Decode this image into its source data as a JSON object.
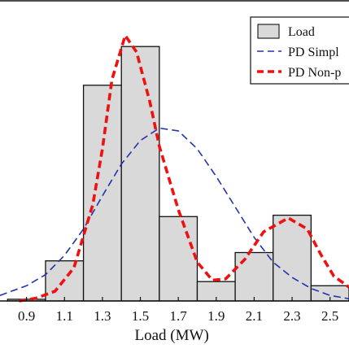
{
  "chart_data": {
    "type": "bar",
    "xlabel": "Load (MW)",
    "ylabel": "",
    "title": "",
    "x_ticks": [
      "0.9",
      "1.1",
      "1.3",
      "1.5",
      "1.7",
      "1.9",
      "2.1",
      "2.3",
      "2.5"
    ],
    "xlim": [
      0.76,
      2.6
    ],
    "ylim": [
      0,
      1.0
    ],
    "bar_width": 0.2,
    "legend_position": "top-right",
    "series": [
      {
        "name": "Load",
        "kind": "histogram",
        "color": "#d9d9d9",
        "bins": [
          {
            "center": 0.9,
            "value": 0.006
          },
          {
            "center": 1.1,
            "value": 0.145
          },
          {
            "center": 1.3,
            "value": 0.78
          },
          {
            "center": 1.5,
            "value": 0.92
          },
          {
            "center": 1.7,
            "value": 0.305
          },
          {
            "center": 1.9,
            "value": 0.07
          },
          {
            "center": 2.1,
            "value": 0.175
          },
          {
            "center": 2.3,
            "value": 0.31
          },
          {
            "center": 2.5,
            "value": 0.055
          }
        ]
      },
      {
        "name": "PD Simpl",
        "kind": "line",
        "style": "dashed",
        "color": "#2233aa",
        "points": [
          {
            "x": 0.76,
            "y": 0.02
          },
          {
            "x": 0.9,
            "y": 0.055
          },
          {
            "x": 1.0,
            "y": 0.095
          },
          {
            "x": 1.1,
            "y": 0.165
          },
          {
            "x": 1.2,
            "y": 0.26
          },
          {
            "x": 1.3,
            "y": 0.38
          },
          {
            "x": 1.4,
            "y": 0.495
          },
          {
            "x": 1.5,
            "y": 0.58
          },
          {
            "x": 1.6,
            "y": 0.625
          },
          {
            "x": 1.7,
            "y": 0.615
          },
          {
            "x": 1.8,
            "y": 0.55
          },
          {
            "x": 1.9,
            "y": 0.45
          },
          {
            "x": 2.0,
            "y": 0.34
          },
          {
            "x": 2.1,
            "y": 0.23
          },
          {
            "x": 2.2,
            "y": 0.14
          },
          {
            "x": 2.3,
            "y": 0.085
          },
          {
            "x": 2.4,
            "y": 0.045
          },
          {
            "x": 2.5,
            "y": 0.02
          },
          {
            "x": 2.6,
            "y": 0.008
          }
        ]
      },
      {
        "name": "PD Non-p",
        "kind": "line",
        "style": "dashed",
        "color": "#ee1111",
        "points": [
          {
            "x": 0.86,
            "y": 0.0
          },
          {
            "x": 0.95,
            "y": 0.01
          },
          {
            "x": 1.05,
            "y": 0.035
          },
          {
            "x": 1.15,
            "y": 0.12
          },
          {
            "x": 1.25,
            "y": 0.35
          },
          {
            "x": 1.3,
            "y": 0.55
          },
          {
            "x": 1.35,
            "y": 0.8
          },
          {
            "x": 1.42,
            "y": 0.96
          },
          {
            "x": 1.48,
            "y": 0.9
          },
          {
            "x": 1.55,
            "y": 0.72
          },
          {
            "x": 1.6,
            "y": 0.56
          },
          {
            "x": 1.7,
            "y": 0.33
          },
          {
            "x": 1.8,
            "y": 0.14
          },
          {
            "x": 1.88,
            "y": 0.075
          },
          {
            "x": 1.95,
            "y": 0.08
          },
          {
            "x": 2.05,
            "y": 0.15
          },
          {
            "x": 2.15,
            "y": 0.25
          },
          {
            "x": 2.28,
            "y": 0.3
          },
          {
            "x": 2.38,
            "y": 0.26
          },
          {
            "x": 2.45,
            "y": 0.17
          },
          {
            "x": 2.52,
            "y": 0.09
          },
          {
            "x": 2.6,
            "y": 0.05
          }
        ]
      }
    ]
  }
}
